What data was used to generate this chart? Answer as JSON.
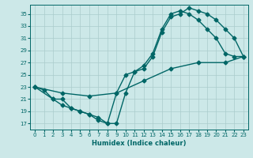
{
  "xlabel": "Humidex (Indice chaleur)",
  "bg_color": "#cce8e8",
  "grid_color": "#aacccc",
  "line_color": "#006666",
  "xlim": [
    -0.5,
    23.5
  ],
  "ylim": [
    16,
    36.5
  ],
  "xticks": [
    0,
    1,
    2,
    3,
    4,
    5,
    6,
    7,
    8,
    9,
    10,
    11,
    12,
    13,
    14,
    15,
    16,
    17,
    18,
    19,
    20,
    21,
    22,
    23
  ],
  "yticks": [
    17,
    19,
    21,
    23,
    25,
    27,
    29,
    31,
    33,
    35
  ],
  "line1_x": [
    0,
    1,
    2,
    3,
    4,
    5,
    6,
    7,
    8,
    9,
    10,
    11,
    12,
    13,
    14,
    15,
    16,
    17,
    18,
    19,
    20,
    21,
    22,
    23
  ],
  "line1_y": [
    23,
    22.5,
    21,
    21,
    19.5,
    19,
    18.5,
    17.5,
    17,
    22,
    25,
    25.5,
    26,
    28,
    32,
    34.5,
    35,
    36,
    35.5,
    35,
    34,
    32.5,
    31,
    28
  ],
  "line2_x": [
    0,
    2,
    3,
    4,
    5,
    6,
    7,
    8,
    9,
    10,
    11,
    12,
    13,
    14,
    15,
    16,
    17,
    18,
    19,
    20,
    21,
    22,
    23
  ],
  "line2_y": [
    23,
    21,
    20,
    19.5,
    19,
    18.5,
    18,
    17,
    17,
    22,
    25.5,
    26.5,
    28.5,
    32.5,
    35,
    35.5,
    35,
    34,
    32.5,
    31,
    28.5,
    28,
    28
  ],
  "line3_x": [
    0,
    3,
    6,
    9,
    12,
    15,
    18,
    21,
    23
  ],
  "line3_y": [
    23,
    22,
    21.5,
    22,
    24,
    26,
    27,
    27,
    28
  ],
  "marker": "D",
  "markersize": 2.5,
  "linewidth": 1.0
}
